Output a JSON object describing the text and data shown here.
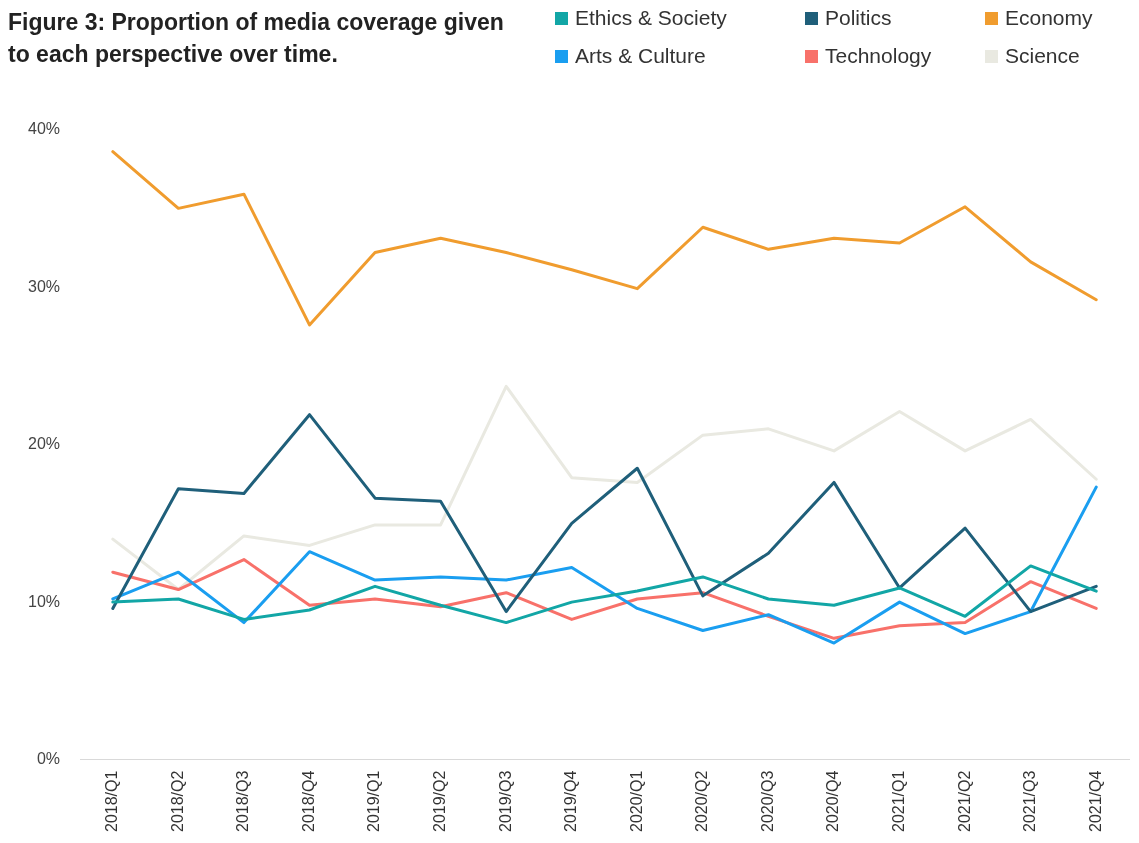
{
  "chart_data": {
    "type": "line",
    "title": "Figure 3: Proportion of media coverage given to each perspective over time.",
    "categories": [
      "2018/Q1",
      "2018/Q2",
      "2018/Q3",
      "2018/Q4",
      "2019/Q1",
      "2019/Q2",
      "2019/Q3",
      "2019/Q4",
      "2020/Q1",
      "2020/Q2",
      "2020/Q3",
      "2020/Q4",
      "2021/Q1",
      "2021/Q2",
      "2021/Q3",
      "2021/Q4"
    ],
    "series": [
      {
        "name": "Ethics & Society",
        "color": "#12a6a6",
        "values": [
          10.0,
          10.2,
          8.9,
          9.5,
          11.0,
          9.8,
          8.7,
          10.0,
          10.7,
          11.6,
          10.2,
          9.8,
          10.9,
          9.1,
          12.3,
          10.7
        ]
      },
      {
        "name": "Politics",
        "color": "#1f5f7a",
        "values": [
          9.6,
          17.2,
          16.9,
          21.9,
          16.6,
          16.4,
          9.4,
          15.0,
          18.5,
          10.4,
          13.1,
          17.6,
          10.9,
          14.7,
          9.4,
          11.0
        ]
      },
      {
        "name": "Economy",
        "color": "#f09c2e",
        "values": [
          38.6,
          35.0,
          35.9,
          27.6,
          32.2,
          33.1,
          32.2,
          31.1,
          29.9,
          33.8,
          32.4,
          33.1,
          32.8,
          35.1,
          31.6,
          29.2
        ]
      },
      {
        "name": "Arts & Culture",
        "color": "#1a9ef0",
        "values": [
          10.2,
          11.9,
          8.7,
          13.2,
          11.4,
          11.6,
          11.4,
          12.2,
          9.6,
          8.2,
          9.2,
          7.4,
          10.0,
          8.0,
          9.4,
          17.3
        ]
      },
      {
        "name": "Technology",
        "color": "#f8716a",
        "values": [
          11.9,
          10.8,
          12.7,
          9.8,
          10.2,
          9.7,
          10.6,
          8.9,
          10.2,
          10.6,
          9.1,
          7.7,
          8.5,
          8.7,
          11.3,
          9.6
        ]
      },
      {
        "name": "Science",
        "color": "#e9e9e1",
        "values": [
          14.0,
          10.8,
          14.2,
          13.6,
          14.9,
          14.9,
          23.7,
          17.9,
          17.6,
          20.6,
          21.0,
          19.6,
          22.1,
          19.6,
          21.6,
          17.8
        ]
      }
    ],
    "ylim": [
      0,
      40
    ],
    "yticks": [
      {
        "value": 0,
        "label": "0%"
      },
      {
        "value": 10,
        "label": "10%"
      },
      {
        "value": 20,
        "label": "20%"
      },
      {
        "value": 30,
        "label": "30%"
      },
      {
        "value": 40,
        "label": "40%"
      }
    ],
    "grid": false,
    "legend": "top right",
    "marker": "none",
    "line_style": "solid"
  }
}
